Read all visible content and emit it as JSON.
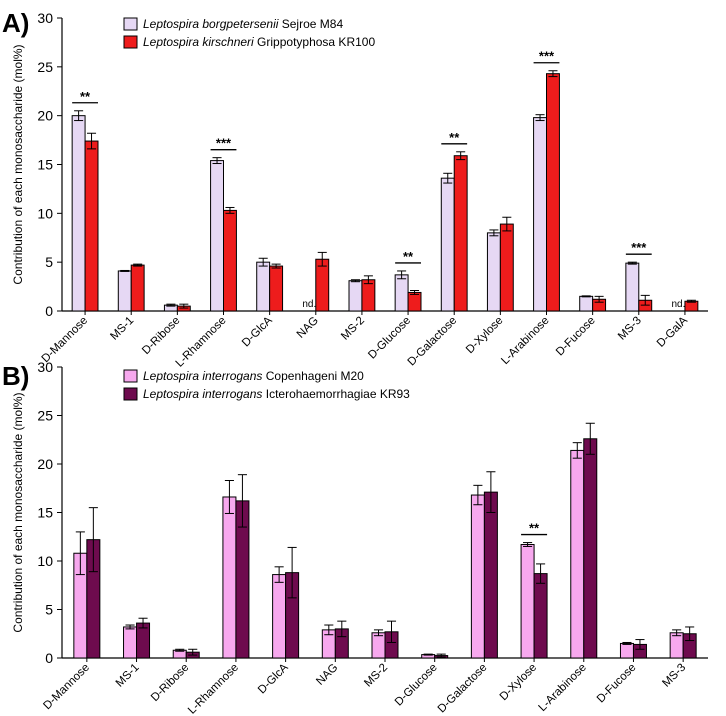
{
  "chart_data": [
    {
      "panel_label": "A)",
      "type": "bar",
      "ylabel": "Contribution of each monosaccharide (mol%)",
      "ylim": [
        0,
        30
      ],
      "yticks": [
        "0",
        "5",
        "10",
        "15",
        "20",
        "25",
        "30"
      ],
      "categories": [
        "D-Mannose",
        "MS-1",
        "D-Ribose",
        "L-Rhamnose",
        "D-GlcA",
        "NAG",
        "MS-2",
        "D-Glucose",
        "D-Galactose",
        "D-Xylose",
        "L-Arabinose",
        "D-Fucose",
        "MS-3",
        "D-GalA"
      ],
      "series": [
        {
          "name": "Leptospira borgpetersenii Sejroe M84",
          "name_italic": "Leptospira borgpetersenii",
          "name_rest": " Sejroe M84",
          "color": "#e6d8f4",
          "values": [
            20.0,
            4.1,
            0.6,
            15.4,
            5.0,
            null,
            3.1,
            3.7,
            13.6,
            8.0,
            19.8,
            1.5,
            4.9,
            null
          ],
          "errors": [
            0.5,
            0.05,
            0.1,
            0.3,
            0.4,
            null,
            0.1,
            0.4,
            0.5,
            0.3,
            0.3,
            0.05,
            0.1,
            null
          ],
          "nd": [
            "",
            "",
            "",
            "",
            "",
            "nd.",
            "",
            "",
            "",
            "",
            "",
            "",
            "",
            "nd."
          ]
        },
        {
          "name": "Leptospira kirschneri Grippotyphosa KR100",
          "name_italic": "Leptospira kirschneri",
          "name_rest": " Grippotyphosa KR100",
          "color": "#ee1c1c",
          "values": [
            17.4,
            4.7,
            0.5,
            10.3,
            4.6,
            5.3,
            3.2,
            1.9,
            15.9,
            8.9,
            24.3,
            1.2,
            1.1,
            1.0
          ],
          "errors": [
            0.8,
            0.1,
            0.2,
            0.3,
            0.2,
            0.7,
            0.4,
            0.2,
            0.4,
            0.7,
            0.3,
            0.3,
            0.5,
            0.1
          ],
          "nd": [
            "",
            "",
            "",
            "",
            "",
            "",
            "",
            "",
            "",
            "",
            "",
            "",
            "",
            ""
          ]
        }
      ],
      "significance": [
        {
          "category": "D-Mannose",
          "text": "**"
        },
        {
          "category": "L-Rhamnose",
          "text": "***"
        },
        {
          "category": "D-Glucose",
          "text": "**"
        },
        {
          "category": "D-Galactose",
          "text": "**"
        },
        {
          "category": "L-Arabinose",
          "text": "***"
        },
        {
          "category": "MS-3",
          "text": "***"
        }
      ]
    },
    {
      "panel_label": "B)",
      "type": "bar",
      "ylabel": "Contribution of each monosaccharide (mol%)",
      "ylim": [
        0,
        30
      ],
      "yticks": [
        "0",
        "5",
        "10",
        "15",
        "20",
        "25",
        "30"
      ],
      "categories": [
        "D-Mannose",
        "MS-1",
        "D-Ribose",
        "L-Rhamnose",
        "D-GlcA",
        "NAG",
        "MS-2",
        "D-Glucose",
        "D-Galactose",
        "D-Xylose",
        "L-Arabinose",
        "D-Fucose",
        "MS-3"
      ],
      "series": [
        {
          "name": "Leptospira interrogans Copenhageni M20",
          "name_italic": "Leptospira interrogans",
          "name_rest": " Copenhageni M20",
          "color": "#f7a8ee",
          "values": [
            10.8,
            3.2,
            0.8,
            16.6,
            8.6,
            2.9,
            2.6,
            0.35,
            16.8,
            11.7,
            21.4,
            1.5,
            2.6
          ],
          "errors": [
            2.2,
            0.2,
            0.1,
            1.7,
            0.8,
            0.5,
            0.3,
            0.05,
            1.0,
            0.2,
            0.8,
            0.1,
            0.3
          ],
          "nd": [
            "",
            "",
            "",
            "",
            "",
            "",
            "",
            "",
            "",
            "",
            "",
            "",
            ""
          ]
        },
        {
          "name": "Leptospira interrogans Icterohaemorrhagiae KR93",
          "name_italic": "Leptospira interrogans",
          "name_rest": " Icterohaemorrhagiae KR93",
          "color": "#6e0b4e",
          "values": [
            12.2,
            3.6,
            0.6,
            16.2,
            8.8,
            3.0,
            2.7,
            0.25,
            17.1,
            8.7,
            22.6,
            1.4,
            2.5
          ],
          "errors": [
            3.3,
            0.5,
            0.3,
            2.7,
            2.6,
            0.8,
            1.1,
            0.15,
            2.1,
            1.0,
            1.6,
            0.5,
            0.7
          ],
          "nd": [
            "",
            "",
            "",
            "",
            "",
            "",
            "",
            "",
            "",
            "",
            "",
            "",
            ""
          ]
        }
      ],
      "significance": [
        {
          "category": "D-Xylose",
          "text": "**"
        }
      ]
    }
  ]
}
